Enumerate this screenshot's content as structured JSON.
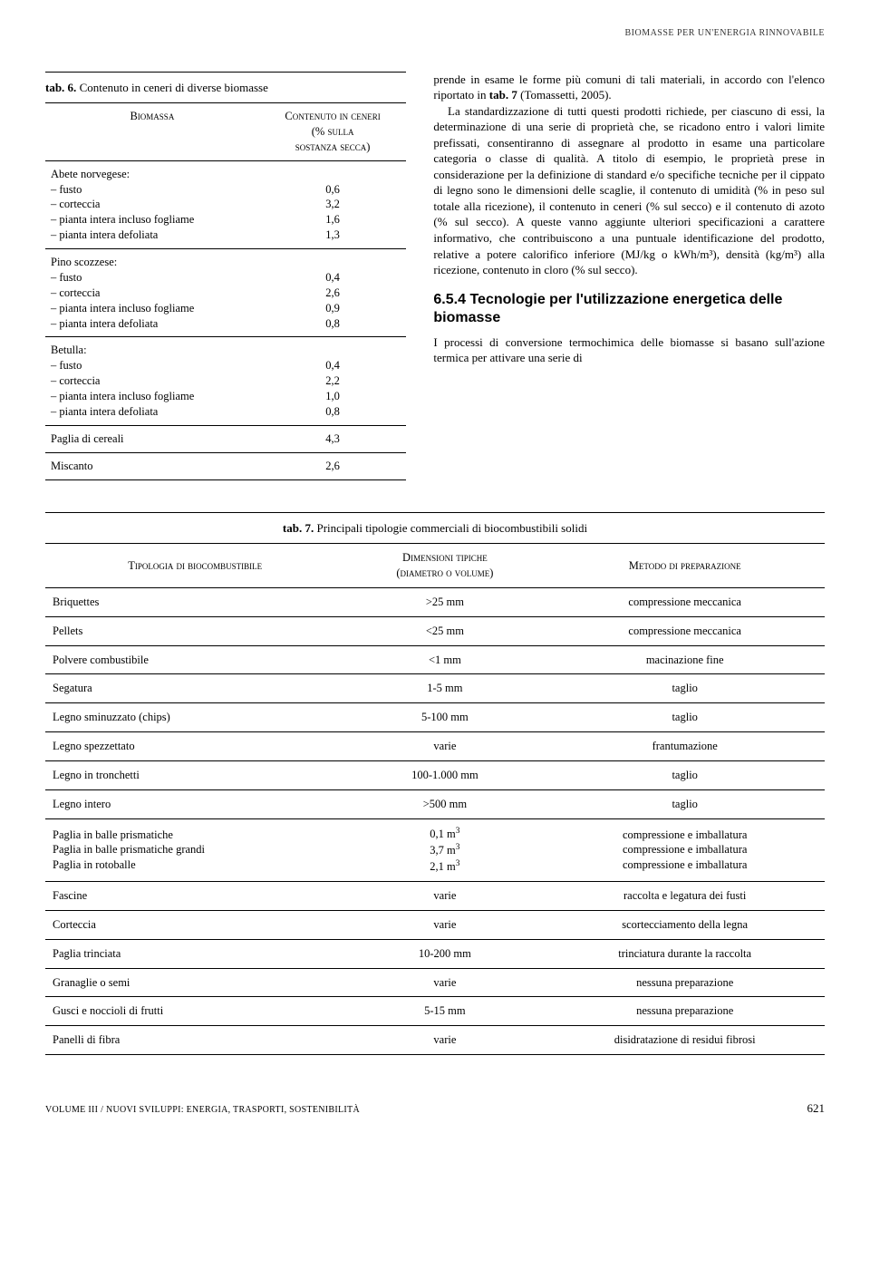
{
  "page": {
    "running_head": "BIOMASSE PER UN'ENERGIA RINNOVABILE",
    "footer_volume": "VOLUME III / NUOVI SVILUPPI: ENERGIA, TRASPORTI, SOSTENIBILITÀ",
    "page_number": "621"
  },
  "tab6": {
    "caption_bold": "tab. 6.",
    "caption_rest": " Contenuto in ceneri di diverse biomasse",
    "col1_header": "Biomassa",
    "col2_header_line1": "Contenuto in ceneri",
    "col2_header_line2": "(% sulla",
    "col2_header_line3": "sostanza secca)",
    "groups": [
      {
        "label": "Abete norvegese:",
        "items": [
          "fusto",
          "corteccia",
          "pianta intera incluso fogliame",
          "pianta intera defoliata"
        ],
        "values": [
          "0,6",
          "3,2",
          "1,6",
          "1,3"
        ]
      },
      {
        "label": "Pino scozzese:",
        "items": [
          "fusto",
          "corteccia",
          "pianta intera incluso fogliame",
          "pianta intera defoliata"
        ],
        "values": [
          "0,4",
          "2,6",
          "0,9",
          "0,8"
        ]
      },
      {
        "label": "Betulla:",
        "items": [
          "fusto",
          "corteccia",
          "pianta intera incluso fogliame",
          "pianta intera defoliata"
        ],
        "values": [
          "0,4",
          "2,2",
          "1,0",
          "0,8"
        ]
      }
    ],
    "single_rows": [
      {
        "label": "Paglia di cereali",
        "value": "4,3"
      },
      {
        "label": "Miscanto",
        "value": "2,6"
      }
    ]
  },
  "body": {
    "p1": "prende in esame le forme più comuni di tali materiali, in accordo con l'elenco riportato in ",
    "p1_bold": "tab. 7",
    "p1_tail": " (Tomassetti, 2005).",
    "p2": "La standardizzazione di tutti questi prodotti richiede, per ciascuno di essi, la determinazione di una serie di proprietà che, se ricadono entro i valori limite prefissati, consentiranno di assegnare al prodotto in esame una particolare categoria o classe di qualità. A titolo di esempio, le proprietà prese in considerazione per la definizione di standard e/o specifiche tecniche per il cippato di legno sono le dimensioni delle scaglie, il contenuto di umidità (% in peso sul totale alla ricezione), il contenuto in ceneri (% sul secco) e il contenuto di azoto (% sul secco). A queste vanno aggiunte ulteriori specificazioni a carattere informativo, che contribuiscono a una puntuale identificazione del prodotto, relative a potere calorifico inferiore (MJ/kg o kWh/m³), densità (kg/m³) alla ricezione, contenuto in cloro (% sul secco).",
    "section_num": "6.5.4",
    "section_title": "Tecnologie per l'utilizzazione energetica delle biomasse",
    "p3": "I processi di conversione termochimica delle biomasse si basano sull'azione termica per attivare una serie di"
  },
  "tab7": {
    "caption_bold": "tab. 7.",
    "caption_rest": " Principali tipologie commerciali di biocombustibili solidi",
    "headers": [
      "Tipologia di biocombustibile",
      "Dimensioni tipiche (diametro o volume)",
      "Metodo di preparazione"
    ],
    "header2_line1": "Dimensioni tipiche",
    "header2_line2": "(diametro o volume)",
    "rows": [
      {
        "c1": "Briquettes",
        "c2": ">25 mm",
        "c3": "compressione meccanica"
      },
      {
        "c1": "Pellets",
        "c2": "<25 mm",
        "c3": "compressione meccanica"
      },
      {
        "c1": "Polvere combustibile",
        "c2": "<1 mm",
        "c3": "macinazione fine"
      },
      {
        "c1": "Segatura",
        "c2": "1-5 mm",
        "c3": "taglio"
      },
      {
        "c1": "Legno sminuzzato (chips)",
        "c2": "5-100 mm",
        "c3": "taglio"
      },
      {
        "c1": "Legno spezzettato",
        "c2": "varie",
        "c3": "frantumazione"
      },
      {
        "c1": "Legno in tronchetti",
        "c2": "100-1.000 mm",
        "c3": "taglio"
      },
      {
        "c1": "Legno intero",
        "c2": ">500 mm",
        "c3": "taglio"
      }
    ],
    "row_paglia": {
      "c1_lines": [
        "Paglia in balle prismatiche",
        "Paglia in balle prismatiche grandi",
        "Paglia in rotoballe"
      ],
      "c2_lines": [
        "0,1 m³",
        "3,7 m³",
        "2,1 m³"
      ],
      "c3_lines": [
        "compressione e imballatura",
        "compressione e imballatura",
        "compressione e imballatura"
      ]
    },
    "rows_after": [
      {
        "c1": "Fascine",
        "c2": "varie",
        "c3": "raccolta e legatura dei fusti"
      },
      {
        "c1": "Corteccia",
        "c2": "varie",
        "c3": "scortecciamento della legna"
      },
      {
        "c1": "Paglia trinciata",
        "c2": "10-200 mm",
        "c3": "trinciatura durante la raccolta"
      },
      {
        "c1": "Granaglie o semi",
        "c2": "varie",
        "c3": "nessuna preparazione"
      },
      {
        "c1": "Gusci e noccioli di frutti",
        "c2": "5-15 mm",
        "c3": "nessuna preparazione"
      },
      {
        "c1": "Panelli di fibra",
        "c2": "varie",
        "c3": "disidratazione di residui fibrosi"
      }
    ]
  },
  "style": {
    "background": "#ffffff",
    "text_color": "#000000",
    "rule_color": "#000000",
    "body_font": "Georgia/Times",
    "heading_font": "Arial/Helvetica",
    "body_fontsize_pt": 10,
    "heading_fontsize_pt": 12,
    "smallcaps_headers": true
  }
}
